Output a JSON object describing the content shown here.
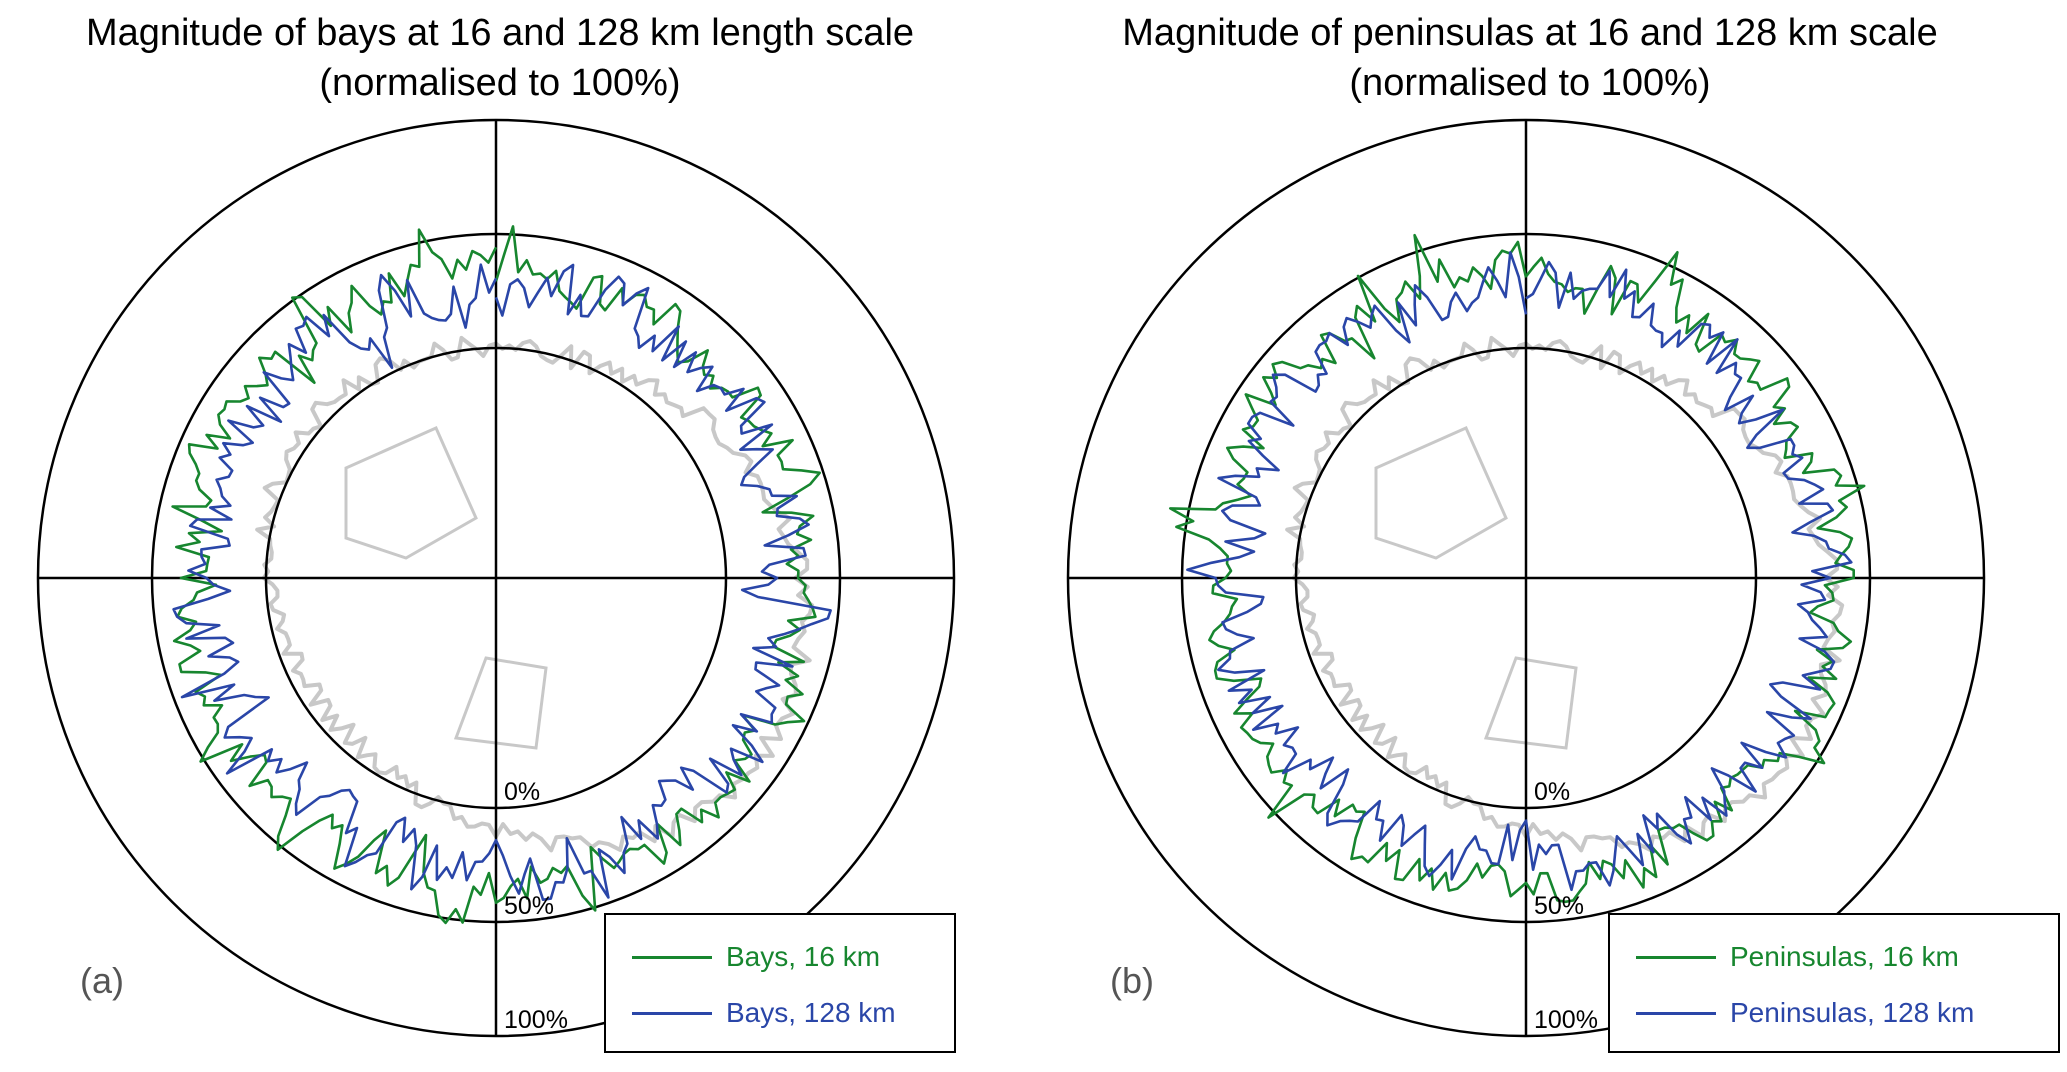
{
  "colors": {
    "green": "#17862f",
    "blue": "#2a46a8",
    "coast": "#c8c8c8",
    "axis": "#000000"
  },
  "chart_data": [
    {
      "type": "polar-line",
      "panel_label": "(a)",
      "title_line1": "Magnitude of bays at 16 and 128 km length scale",
      "title_line2": "(normalised to 100%)",
      "radial_ticks": [
        "0%",
        "50%",
        "100%"
      ],
      "radial_tick_values": [
        0,
        50,
        100
      ],
      "series": [
        {
          "name": "Bays, 16 km",
          "color": "green",
          "seed": 11,
          "mean": 34,
          "amp": 14
        },
        {
          "name": "Bays, 128 km",
          "color": "blue",
          "seed": 47,
          "mean": 28,
          "amp": 18
        }
      ]
    },
    {
      "type": "polar-line",
      "panel_label": "(b)",
      "title_line1": "Magnitude of peninsulas at 16 and 128 km scale",
      "title_line2": "(normalised to 100%)",
      "radial_ticks": [
        "0%",
        "50%",
        "100%"
      ],
      "radial_tick_values": [
        0,
        50,
        100
      ],
      "series": [
        {
          "name": "Peninsulas, 16 km",
          "color": "green",
          "seed": 23,
          "mean": 36,
          "amp": 14
        },
        {
          "name": "Peninsulas, 128 km",
          "color": "blue",
          "seed": 71,
          "mean": 27,
          "amp": 17
        }
      ]
    }
  ]
}
